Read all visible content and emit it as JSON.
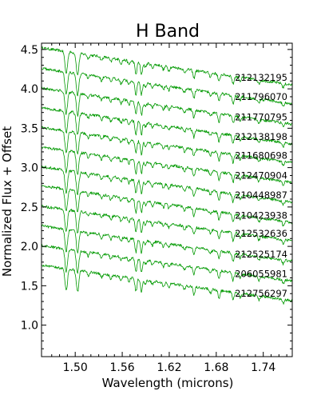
{
  "chart_data": {
    "type": "line",
    "title": "H Band",
    "xlabel": "Wavelength (microns)",
    "ylabel": "Normalized Flux + Offset",
    "xlim": [
      1.457,
      1.777
    ],
    "ylim": [
      0.6,
      4.58
    ],
    "xticks": [
      1.5,
      1.56,
      1.62,
      1.68,
      1.74
    ],
    "xtick_labels": [
      "1.50",
      "1.56",
      "1.62",
      "1.68",
      "1.74"
    ],
    "yticks": [
      1.0,
      1.5,
      2.0,
      2.5,
      3.0,
      3.5,
      4.0,
      4.5
    ],
    "ytick_labels": [
      "1.0",
      "1.5",
      "2.0",
      "2.5",
      "3.0",
      "3.5",
      "4.0",
      "4.5"
    ],
    "line_color": "#009900",
    "grid": false,
    "legend": "none",
    "series_offset": 0.25,
    "absorption_lines_microns": [
      1.4885,
      1.503,
      1.5165,
      1.5335,
      1.5455,
      1.5585,
      1.5685,
      1.5775,
      1.5845,
      1.5895,
      1.5985,
      1.6125,
      1.6195,
      1.6395,
      1.6515,
      1.6725,
      1.6835,
      1.7015,
      1.7105,
      1.7345,
      1.7655
    ],
    "series": [
      {
        "name": "212132195",
        "start_flux": 4.52,
        "end_flux": 4.05
      },
      {
        "name": "211796070",
        "start_flux": 4.26,
        "end_flux": 3.81
      },
      {
        "name": "211770795",
        "start_flux": 4.01,
        "end_flux": 3.55
      },
      {
        "name": "212138198",
        "start_flux": 3.76,
        "end_flux": 3.3
      },
      {
        "name": "211680698",
        "start_flux": 3.51,
        "end_flux": 3.06
      },
      {
        "name": "212470904",
        "start_flux": 3.26,
        "end_flux": 2.81
      },
      {
        "name": "210448987",
        "start_flux": 3.01,
        "end_flux": 2.56
      },
      {
        "name": "210423938",
        "start_flux": 2.77,
        "end_flux": 2.3
      },
      {
        "name": "212532636",
        "start_flux": 2.51,
        "end_flux": 2.07
      },
      {
        "name": "212525174",
        "start_flux": 2.26,
        "end_flux": 1.81
      },
      {
        "name": "206055981",
        "start_flux": 2.01,
        "end_flux": 1.56
      },
      {
        "name": "212756297",
        "start_flux": 1.76,
        "end_flux": 1.31
      }
    ]
  }
}
